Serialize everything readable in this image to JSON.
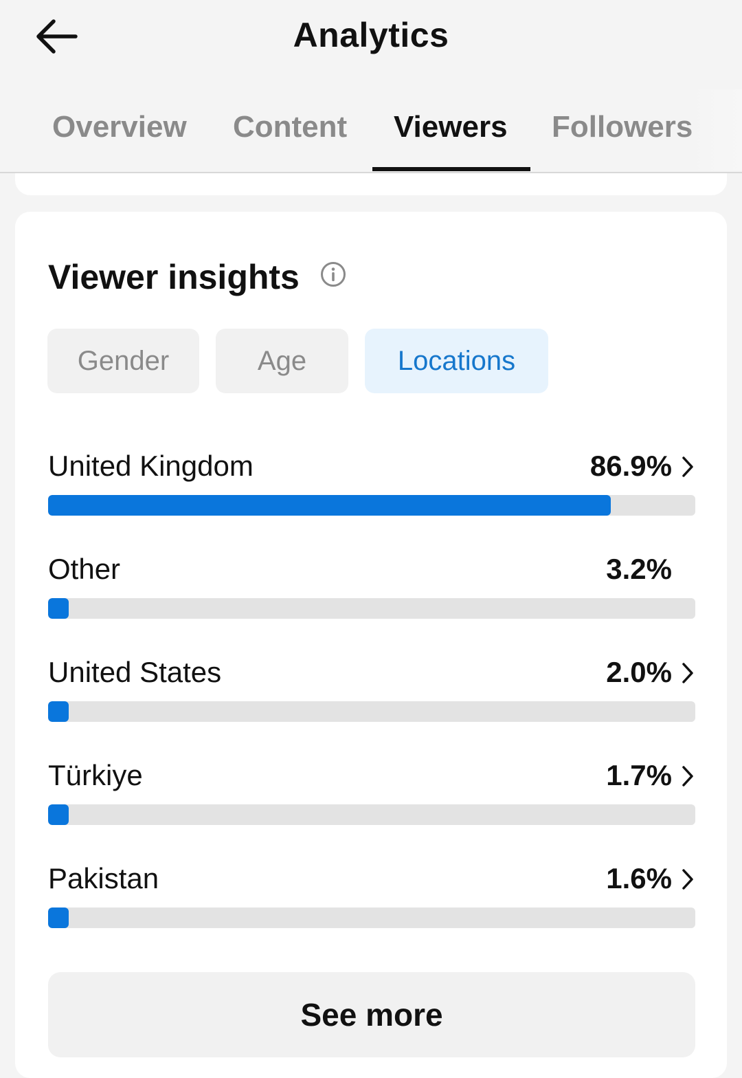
{
  "header": {
    "title": "Analytics",
    "back_icon": "arrow-left-icon"
  },
  "tabs": [
    {
      "label": "Overview",
      "active": false
    },
    {
      "label": "Content",
      "active": false
    },
    {
      "label": "Viewers",
      "active": true
    },
    {
      "label": "Followers",
      "active": false
    }
  ],
  "insights": {
    "title": "Viewer insights",
    "info_icon": "info-icon",
    "chips": [
      {
        "label": "Gender",
        "active": false
      },
      {
        "label": "Age",
        "active": false
      },
      {
        "label": "Locations",
        "active": true
      }
    ],
    "locations": [
      {
        "name": "United Kingdom",
        "value": "86.9%",
        "percent": 86.9,
        "has_chevron": true
      },
      {
        "name": "Other",
        "value": "3.2%",
        "percent": 3.2,
        "has_chevron": false
      },
      {
        "name": "United States",
        "value": "2.0%",
        "percent": 2.0,
        "has_chevron": true
      },
      {
        "name": "Türkiye",
        "value": "1.7%",
        "percent": 1.7,
        "has_chevron": true
      },
      {
        "name": "Pakistan",
        "value": "1.6%",
        "percent": 1.6,
        "has_chevron": true
      }
    ],
    "see_more_label": "See more"
  },
  "colors": {
    "accent": "#0a76dc",
    "active_chip_bg": "#e7f3fd",
    "active_chip_text": "#1677cc",
    "track": "#e3e3e3"
  }
}
